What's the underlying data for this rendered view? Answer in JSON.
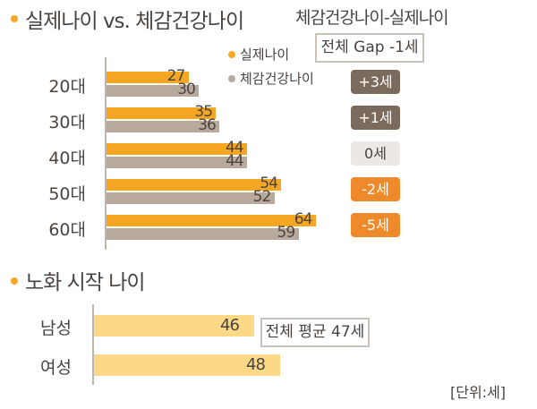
{
  "chart_data": [
    {
      "type": "bar",
      "orientation": "horizontal",
      "title": "실제나이 vs. 체감건강나이",
      "categories": [
        "20대",
        "30대",
        "40대",
        "50대",
        "60대"
      ],
      "series": [
        {
          "name": "실제나이",
          "values": [
            27,
            35,
            44,
            54,
            64
          ],
          "color": "#f5a623"
        },
        {
          "name": "체감건강나이",
          "values": [
            30,
            36,
            44,
            52,
            59
          ],
          "color": "#b7aa9c"
        }
      ],
      "gap_title": "체감건강나이-실제나이",
      "gap_total": "전체 Gap -1세",
      "gaps": [
        {
          "label": "+3세",
          "color": "#7b6b5c"
        },
        {
          "label": "+1세",
          "color": "#7b6b5c"
        },
        {
          "label": "0세",
          "color": "#ebe8e5"
        },
        {
          "label": "-2세",
          "color": "#ef8a2c"
        },
        {
          "label": "-5세",
          "color": "#ef8a2c"
        }
      ]
    },
    {
      "type": "bar",
      "orientation": "horizontal",
      "title": "노화 시작 나이",
      "categories": [
        "남성",
        "여성"
      ],
      "series": [
        {
          "values": [
            46,
            48
          ],
          "color": "#fbd987"
        }
      ],
      "annotation": "전체 평균 47세",
      "unit": "[단위:세]"
    }
  ]
}
